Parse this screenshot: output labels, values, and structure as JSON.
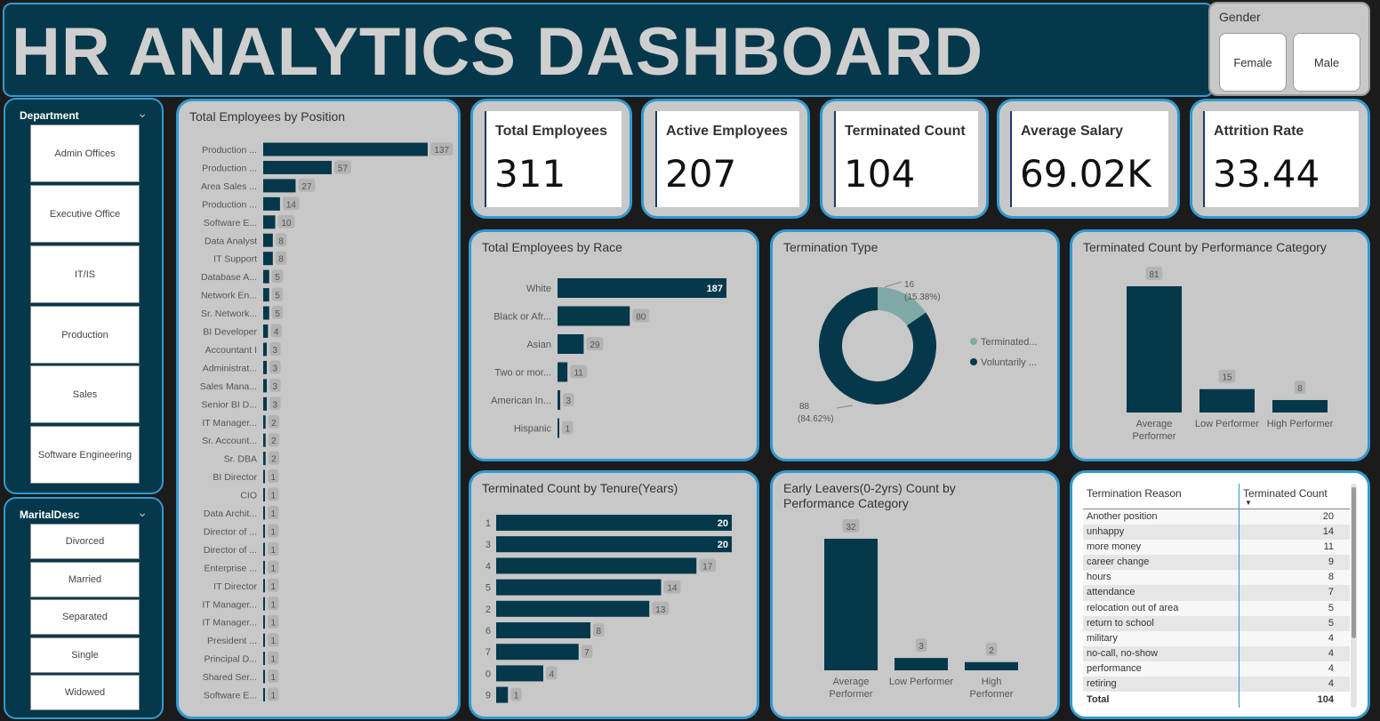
{
  "header": {
    "title": "HR ANALYTICS DASHBOARD"
  },
  "gender_slicer": {
    "label": "Gender",
    "options": [
      "Female",
      "Male"
    ]
  },
  "department_slicer": {
    "label": "Department",
    "options": [
      "Admin Offices",
      "Executive Office",
      "IT/IS",
      "Production",
      "Sales",
      "Software Engineering"
    ]
  },
  "marital_slicer": {
    "label": "MaritalDesc",
    "options": [
      "Divorced",
      "Married",
      "Separated",
      "Single",
      "Widowed"
    ]
  },
  "kpis": [
    {
      "label": "Total Employees",
      "value": "311"
    },
    {
      "label": "Active Employees",
      "value": "207"
    },
    {
      "label": "Terminated Count",
      "value": "104"
    },
    {
      "label": "Average Salary",
      "value": "69.02K"
    },
    {
      "label": "Attrition Rate",
      "value": "33.44"
    }
  ],
  "colors": {
    "bar": "#05384a",
    "donut_light": "#7fa9a6",
    "card_border": "#2f9bd0",
    "card_bg": "#c8c8c8"
  },
  "chart_data": [
    {
      "id": "position",
      "type": "bar",
      "orientation": "horizontal",
      "title": "Total Employees by Position",
      "categories": [
        "Production ...",
        "Production ...",
        "Area Sales ...",
        "Production ...",
        "Software E...",
        "Data Analyst",
        "IT Support",
        "Database A...",
        "Network En...",
        "Sr. Network...",
        "BI Developer",
        "Accountant I",
        "Administrat...",
        "Sales Mana...",
        "Senior BI D...",
        "IT Manager...",
        "Sr. Account...",
        "Sr. DBA",
        "BI Director",
        "CIO",
        "Data Archit...",
        "Director of ...",
        "Director of ...",
        "Enterprise ...",
        "IT Director",
        "IT Manager...",
        "IT Manager...",
        "President ...",
        "Principal D...",
        "Shared Ser...",
        "Software E..."
      ],
      "values": [
        137,
        57,
        27,
        14,
        10,
        8,
        8,
        5,
        5,
        5,
        4,
        3,
        3,
        3,
        3,
        2,
        2,
        2,
        1,
        1,
        1,
        1,
        1,
        1,
        1,
        1,
        1,
        1,
        1,
        1,
        1
      ]
    },
    {
      "id": "race",
      "type": "bar",
      "orientation": "horizontal",
      "title": "Total Employees by Race",
      "categories": [
        "White",
        "Black or Afr...",
        "Asian",
        "Two or mor...",
        "American In...",
        "Hispanic"
      ],
      "values": [
        187,
        80,
        29,
        11,
        3,
        1
      ]
    },
    {
      "id": "termtype",
      "type": "pie",
      "title": "Termination Type",
      "legend": "right",
      "series": [
        {
          "name": "Terminated...",
          "value": 16,
          "label": "16",
          "pct": "(15.38%)"
        },
        {
          "name": "Voluntarily ...",
          "value": 88,
          "label": "88",
          "pct": "(84.62%)"
        }
      ]
    },
    {
      "id": "perf",
      "type": "bar",
      "orientation": "vertical",
      "title": "Terminated Count by Performance Category",
      "categories": [
        "Average Performer",
        "Low Performer",
        "High Performer"
      ],
      "values": [
        81,
        15,
        8
      ]
    },
    {
      "id": "tenure",
      "type": "bar",
      "orientation": "horizontal",
      "title": "Terminated Count by Tenure(Years)",
      "categories": [
        "1",
        "3",
        "4",
        "5",
        "2",
        "6",
        "7",
        "0",
        "9"
      ],
      "values": [
        20,
        20,
        17,
        14,
        13,
        8,
        7,
        4,
        1
      ]
    },
    {
      "id": "early",
      "type": "bar",
      "orientation": "vertical",
      "title": "Early Leavers(0-2yrs) Count by Performance Category",
      "categories": [
        "Average Performer",
        "Low Performer",
        "High Performer"
      ],
      "values": [
        32,
        3,
        2
      ]
    }
  ],
  "reason_table": {
    "headers": [
      "Termination Reason",
      "Terminated Count"
    ],
    "rows": [
      [
        "Another position",
        "20"
      ],
      [
        "unhappy",
        "14"
      ],
      [
        "more money",
        "11"
      ],
      [
        "career change",
        "9"
      ],
      [
        "hours",
        "8"
      ],
      [
        "attendance",
        "7"
      ],
      [
        "relocation out of area",
        "5"
      ],
      [
        "return to school",
        "5"
      ],
      [
        "military",
        "4"
      ],
      [
        "no-call, no-show",
        "4"
      ],
      [
        "performance",
        "4"
      ],
      [
        "retiring",
        "4"
      ]
    ],
    "total": [
      "Total",
      "104"
    ]
  }
}
